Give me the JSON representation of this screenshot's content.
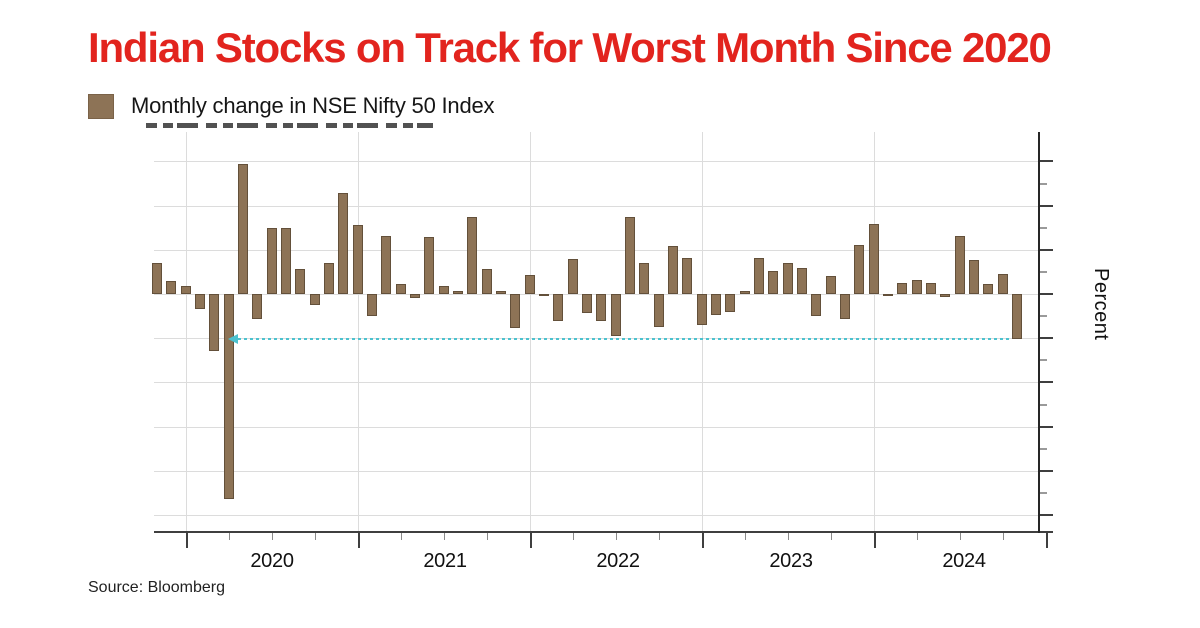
{
  "title": "Indian Stocks on Track for Worst Month Since 2020",
  "legend": {
    "label": "Monthly change in NSE Nifty 50 Index",
    "swatch_color": "#8d7356"
  },
  "y_axis": {
    "label": "Percent"
  },
  "x_axis": {
    "year_labels": [
      "2020",
      "2021",
      "2022",
      "2023",
      "2024"
    ]
  },
  "source": "Source: Bloomberg",
  "colors": {
    "title_red": "#e2241e",
    "bar_fill": "#8d7356",
    "bar_border": "#63503a",
    "highlight_teal": "#4cc2cf",
    "gridline": "#dcdcdc",
    "axis": "#3f3f3f"
  },
  "chart_data": {
    "type": "bar",
    "title": "Monthly change in NSE Nifty 50 Index",
    "xlabel": "",
    "ylabel": "Percent",
    "ylim": [
      -26.9,
      18.3
    ],
    "grid": true,
    "grid_interval_pct": 5,
    "legend_position": "top-left",
    "x_tick_labels": [
      "2020",
      "2021",
      "2022",
      "2023",
      "2024"
    ],
    "months": [
      "2019-10",
      "2019-11",
      "2019-12",
      "2020-01",
      "2020-02",
      "2020-03",
      "2020-04",
      "2020-05",
      "2020-06",
      "2020-07",
      "2020-08",
      "2020-09",
      "2020-10",
      "2020-11",
      "2020-12",
      "2021-01",
      "2021-02",
      "2021-03",
      "2021-04",
      "2021-05",
      "2021-06",
      "2021-07",
      "2021-08",
      "2021-09",
      "2021-10",
      "2021-11",
      "2021-12",
      "2022-01",
      "2022-02",
      "2022-03",
      "2022-04",
      "2022-05",
      "2022-06",
      "2022-07",
      "2022-08",
      "2022-09",
      "2022-10",
      "2022-11",
      "2022-12",
      "2023-01",
      "2023-02",
      "2023-03",
      "2023-04",
      "2023-05",
      "2023-06",
      "2023-07",
      "2023-08",
      "2023-09",
      "2023-10",
      "2023-11",
      "2023-12",
      "2024-01",
      "2024-02",
      "2024-03",
      "2024-04",
      "2024-05",
      "2024-06",
      "2024-07",
      "2024-08",
      "2024-09",
      "2024-10"
    ],
    "values": [
      3.5,
      1.5,
      0.9,
      -1.7,
      -6.4,
      -23.2,
      14.7,
      -2.8,
      7.5,
      7.5,
      2.8,
      -1.2,
      3.5,
      11.4,
      7.8,
      -2.5,
      6.6,
      1.1,
      -0.4,
      6.5,
      0.9,
      0.3,
      8.7,
      2.8,
      0.3,
      -3.9,
      2.2,
      -0.1,
      -3.1,
      4.0,
      -2.1,
      -3.0,
      -4.8,
      8.7,
      3.5,
      -3.7,
      5.4,
      4.1,
      -3.5,
      -2.4,
      -2.0,
      0.3,
      4.1,
      2.6,
      3.5,
      2.9,
      -2.5,
      2.0,
      -2.8,
      5.5,
      7.9,
      -0.1,
      1.2,
      1.6,
      1.2,
      -0.3,
      6.6,
      3.9,
      1.1,
      2.3,
      -5.1
    ],
    "annotation": {
      "type": "dotted-arrow-line",
      "y": -5.1,
      "from_month": "2024-10",
      "to_month": "2020-04",
      "direction": "left",
      "color": "#4cc2cf",
      "meaning": "current monthly drop level traced back to early 2020"
    }
  }
}
